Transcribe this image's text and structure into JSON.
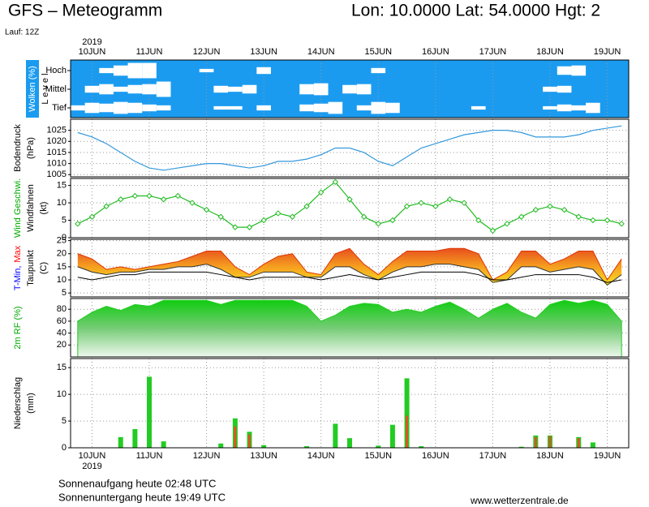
{
  "header": {
    "title": "GFS – Meteogramm",
    "location": "Lon: 10.0000 Lat: 54.0000 Hgt: 2",
    "run": "Lauf: 12Z"
  },
  "chart_data": [
    {
      "type": "cloud",
      "year": "2019",
      "categories": [
        null,
        "10JUN",
        null,
        null,
        null,
        "11JUN",
        null,
        null,
        null,
        "12JUN",
        null,
        null,
        null,
        "13JUN",
        null,
        null,
        null,
        "14JUN",
        null,
        null,
        null,
        "15JUN",
        null,
        null,
        null,
        "16JUN",
        null,
        null,
        null,
        "17JUN",
        null,
        null,
        null,
        "18JUN",
        null,
        null,
        null,
        "19JUN",
        null
      ],
      "ylabel": [
        [
          {
            "text": "Wolken (%)",
            "color": "#ffffff"
          }
        ],
        [
          {
            "text": "L e v e l",
            "color": "#000000"
          }
        ]
      ],
      "label_bg": "#1a9bf0",
      "background": "#1a9bf0",
      "color": "#ffffff",
      "series": [
        {
          "name": "Hoch",
          "values": [
            0,
            0,
            30,
            60,
            90,
            90,
            0,
            0,
            0,
            20,
            0,
            0,
            0,
            40,
            0,
            0,
            0,
            0,
            0,
            0,
            0,
            30,
            0,
            0,
            0,
            0,
            0,
            0,
            0,
            0,
            0,
            0,
            0,
            0,
            50,
            60,
            0,
            0,
            0
          ]
        },
        {
          "name": "Mittel",
          "values": [
            0,
            40,
            60,
            30,
            50,
            60,
            90,
            0,
            0,
            0,
            40,
            30,
            50,
            0,
            0,
            0,
            60,
            70,
            0,
            50,
            60,
            0,
            0,
            0,
            0,
            0,
            0,
            0,
            0,
            0,
            0,
            0,
            0,
            30,
            40,
            0,
            0,
            0,
            0
          ]
        },
        {
          "name": "Tief",
          "values": [
            30,
            60,
            50,
            70,
            60,
            40,
            30,
            0,
            0,
            0,
            20,
            20,
            0,
            30,
            0,
            0,
            40,
            50,
            70,
            0,
            30,
            70,
            60,
            0,
            0,
            0,
            0,
            0,
            20,
            0,
            0,
            0,
            0,
            20,
            40,
            30,
            60,
            0,
            0
          ]
        }
      ]
    },
    {
      "type": "line",
      "ylabel": [
        [
          {
            "text": "Bodendruck",
            "color": "#000000"
          }
        ],
        [
          {
            "text": "(hPa)",
            "color": "#000000"
          }
        ]
      ],
      "ylim": [
        1004,
        1030
      ],
      "yticks": [
        1005,
        1010,
        1015,
        1020,
        1025
      ],
      "grid": true,
      "series": [
        {
          "color": "#3399dd",
          "values": [
            1024,
            1022,
            1019,
            1015,
            1011,
            1008,
            1007,
            1008,
            1009,
            1010,
            1010,
            1009,
            1008,
            1009,
            1011,
            1011,
            1012,
            1014,
            1017,
            1017,
            1015,
            1011,
            1009,
            1013,
            1017,
            1019,
            1021,
            1023,
            1024,
            1025,
            1025,
            1024,
            1022,
            1022,
            1022,
            1023,
            1025,
            1026,
            1027
          ]
        }
      ]
    },
    {
      "type": "line",
      "ylabel": [
        [
          {
            "text": "Wind Geschwi.",
            "color": "#00aa00"
          }
        ],
        [
          {
            "text": "Windfahnen",
            "color": "#000000"
          }
        ],
        [
          {
            "text": "(kt)",
            "color": "#000000"
          }
        ]
      ],
      "ylim": [
        0,
        17
      ],
      "yticks": [
        0,
        5,
        10,
        15
      ],
      "grid": true,
      "series": [
        {
          "color": "#22bb22",
          "marker": "diamond",
          "values": [
            4,
            6,
            9,
            11,
            12,
            12,
            11,
            12,
            10,
            8,
            6,
            3,
            3,
            5,
            7,
            6,
            9,
            13,
            16,
            11,
            6,
            4,
            5,
            9,
            10,
            9,
            11,
            10,
            5,
            2,
            4,
            6,
            8,
            9,
            8,
            6,
            5,
            5,
            4
          ]
        }
      ]
    },
    {
      "type": "range",
      "ylabel": [
        [
          {
            "text": "T-Min,",
            "color": "#0000ff"
          },
          {
            "text": "Max",
            "color": "#ff0000"
          }
        ],
        [
          {
            "text": "Taupunkt",
            "color": "#000000"
          }
        ],
        [
          {
            "text": "(C)",
            "color": "#000000"
          }
        ]
      ],
      "ylim": [
        3.5,
        25.5
      ],
      "yticks": [
        5,
        10,
        15,
        20,
        25
      ],
      "grid": true,
      "series": [
        {
          "color": "#333333",
          "values": [
            15,
            13,
            12,
            13,
            13,
            14,
            14,
            15,
            15,
            16,
            14,
            11,
            11,
            13,
            13,
            13,
            11,
            11,
            15,
            15,
            12,
            10,
            13,
            15,
            15,
            16,
            16,
            15,
            14,
            9,
            10,
            15,
            15,
            13,
            14,
            15,
            14,
            8,
            12
          ]
        },
        {
          "color": "#dd3300",
          "values": [
            20,
            18,
            14,
            15,
            14,
            15,
            16,
            17,
            19,
            21,
            21,
            15,
            12,
            16,
            19,
            20,
            13,
            12,
            20,
            22,
            16,
            12,
            17,
            21,
            21,
            21,
            22,
            22,
            20,
            10,
            13,
            21,
            21,
            16,
            18,
            21,
            21,
            10,
            18
          ]
        },
        {
          "color": "#000000",
          "values": [
            11,
            10,
            11,
            12,
            12,
            13,
            13,
            13,
            13,
            13,
            12,
            11,
            10,
            11,
            11,
            11,
            11,
            10,
            11,
            12,
            11,
            10,
            11,
            12,
            13,
            13,
            13,
            13,
            12,
            10,
            10,
            11,
            12,
            12,
            12,
            12,
            11,
            9,
            10
          ]
        }
      ]
    },
    {
      "type": "area",
      "ylabel": [
        [
          {
            "text": "2m RF (%)",
            "color": "#00aa00"
          }
        ]
      ],
      "ylim": [
        0,
        98
      ],
      "yticks": [
        20,
        40,
        60,
        80
      ],
      "grid": true,
      "series": [
        {
          "color": "#22cc22",
          "values": [
            60,
            75,
            85,
            78,
            88,
            85,
            95,
            95,
            95,
            95,
            88,
            95,
            95,
            95,
            95,
            95,
            85,
            60,
            70,
            85,
            90,
            88,
            75,
            80,
            75,
            85,
            92,
            80,
            65,
            80,
            90,
            75,
            65,
            88,
            95,
            90,
            95,
            88,
            60
          ]
        }
      ]
    },
    {
      "type": "bar",
      "year": "2019",
      "categories": [
        null,
        "10JUN",
        null,
        null,
        null,
        "11JUN",
        null,
        null,
        null,
        "12JUN",
        null,
        null,
        null,
        "13JUN",
        null,
        null,
        null,
        "14JUN",
        null,
        null,
        null,
        "15JUN",
        null,
        null,
        null,
        "16JUN",
        null,
        null,
        null,
        "17JUN",
        null,
        null,
        null,
        "18JUN",
        null,
        null,
        null,
        "19JUN",
        null
      ],
      "ylabel": [
        [
          {
            "text": "Niederschlag",
            "color": "#000000"
          }
        ],
        [
          {
            "text": "(mm)",
            "color": "#000000"
          }
        ]
      ],
      "ylim": [
        0,
        16.7
      ],
      "yticks": [
        0,
        5,
        10,
        15
      ],
      "grid": true,
      "series": [
        {
          "color": "#22cc22",
          "values": [
            0,
            0,
            0,
            2,
            3.5,
            13.3,
            1.2,
            0,
            0,
            0,
            0.8,
            5.5,
            3,
            0.5,
            0,
            0,
            0.3,
            0,
            4.5,
            1.8,
            0,
            0.4,
            4.3,
            13,
            0.3,
            0,
            0,
            0,
            0,
            0,
            0,
            0.2,
            2.3,
            2.3,
            0,
            2,
            1,
            0,
            0
          ]
        },
        {
          "color": "#dd5522",
          "values": [
            0,
            0,
            0,
            0,
            0,
            0,
            0,
            0,
            0,
            0,
            0,
            4,
            2.5,
            0,
            0,
            0,
            0,
            0,
            0,
            0,
            0,
            0,
            0,
            6,
            0,
            0,
            0,
            0,
            0,
            0,
            0,
            0,
            2,
            2.2,
            0,
            1.8,
            0,
            0,
            0
          ]
        }
      ]
    }
  ],
  "footer": {
    "sunrise": "Sonnenaufgang heute 02:48 UTC",
    "sunset": "Sonnenuntergang heute 19:49 UTC",
    "site": "www.wetterzentrale.de"
  }
}
